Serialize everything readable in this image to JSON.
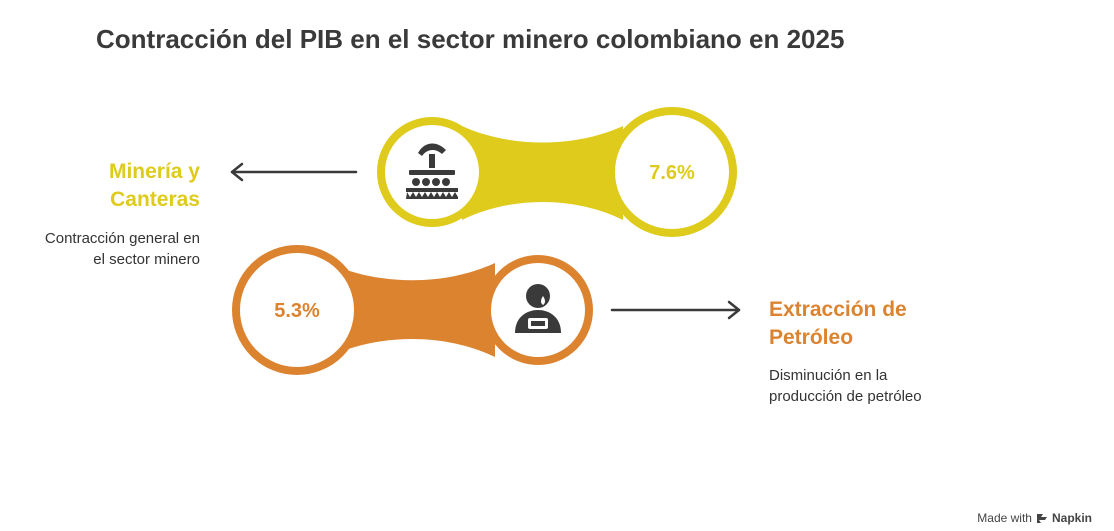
{
  "title": "Contracción del PIB en el sector minero colombiano en 2025",
  "colors": {
    "mining": "#DFCB1B",
    "oil": "#DC8330",
    "text": "#3a3a3a",
    "icon": "#3a3a3a"
  },
  "items": [
    {
      "label": "Minería y\nCanteras",
      "label_lines": [
        "Minería y",
        "Canteras"
      ],
      "description_lines": [
        "Contracción general en",
        "el sector minero"
      ],
      "value": "7.6%",
      "icon": "mining-icon"
    },
    {
      "label": "Extracción de\nPetróleo",
      "label_lines": [
        "Extracción de",
        "Petróleo"
      ],
      "description_lines": [
        "Disminución en la",
        "producción de petróleo"
      ],
      "value": "5.3%",
      "icon": "oil-worker-icon"
    }
  ],
  "watermark": {
    "prefix": "Made with",
    "brand": "Napkin"
  }
}
